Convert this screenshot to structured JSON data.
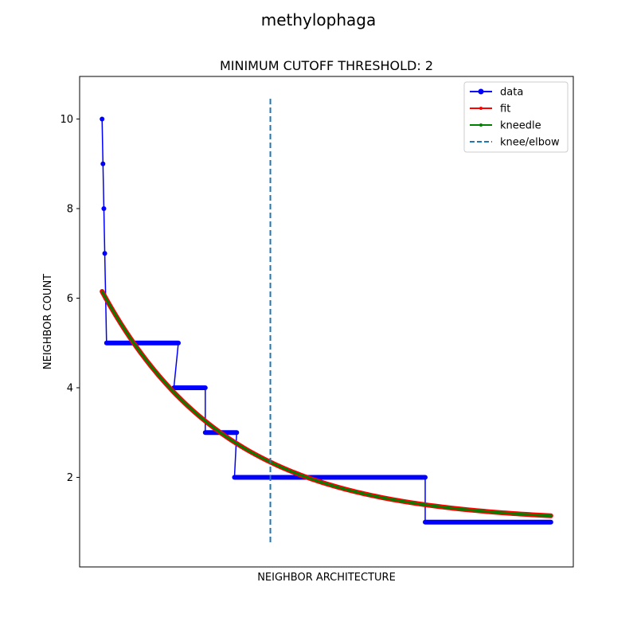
{
  "figure": {
    "suptitle": "methylophaga"
  },
  "chart_data": {
    "type": "line",
    "title": "MINIMUM CUTOFF THRESHOLD: 2",
    "xlabel": "NEIGHBOR ARCHITECTURE",
    "ylabel": "NEIGHBOR COUNT",
    "xlim": [
      -0.05,
      1.05
    ],
    "ylim": [
      0.0,
      10.95
    ],
    "x_ticks_visible": false,
    "yticks": [
      2,
      4,
      6,
      8,
      10
    ],
    "grid": false,
    "legend_position": "top-right",
    "series": [
      {
        "name": "data",
        "color": "#0000ff",
        "marker": "circle",
        "step_segments": [
          {
            "x_start": 0.0,
            "x_end": 0.0,
            "y": 10
          },
          {
            "x_start": 0.002,
            "x_end": 0.002,
            "y": 9
          },
          {
            "x_start": 0.004,
            "x_end": 0.004,
            "y": 8
          },
          {
            "x_start": 0.006,
            "x_end": 0.006,
            "y": 7
          },
          {
            "x_start": 0.008,
            "x_end": 0.008,
            "y": 6
          },
          {
            "x_start": 0.01,
            "x_end": 0.17,
            "y": 5
          },
          {
            "x_start": 0.16,
            "x_end": 0.23,
            "y": 4
          },
          {
            "x_start": 0.23,
            "x_end": 0.3,
            "y": 3
          },
          {
            "x_start": 0.295,
            "x_end": 0.72,
            "y": 2
          },
          {
            "x_start": 0.72,
            "x_end": 1.0,
            "y": 1
          }
        ]
      },
      {
        "name": "fit",
        "color": "#ff0000",
        "marker": "point",
        "model": {
          "a": 5.15,
          "b": 3.59,
          "c": 1.0
        }
      },
      {
        "name": "kneedle",
        "color": "#008000",
        "marker": "point",
        "model": {
          "a": 5.15,
          "b": 3.59,
          "c": 1.0
        }
      },
      {
        "name": "knee/elbow",
        "color": "#1f77b4",
        "style": "dashed",
        "x": 0.375
      }
    ]
  }
}
